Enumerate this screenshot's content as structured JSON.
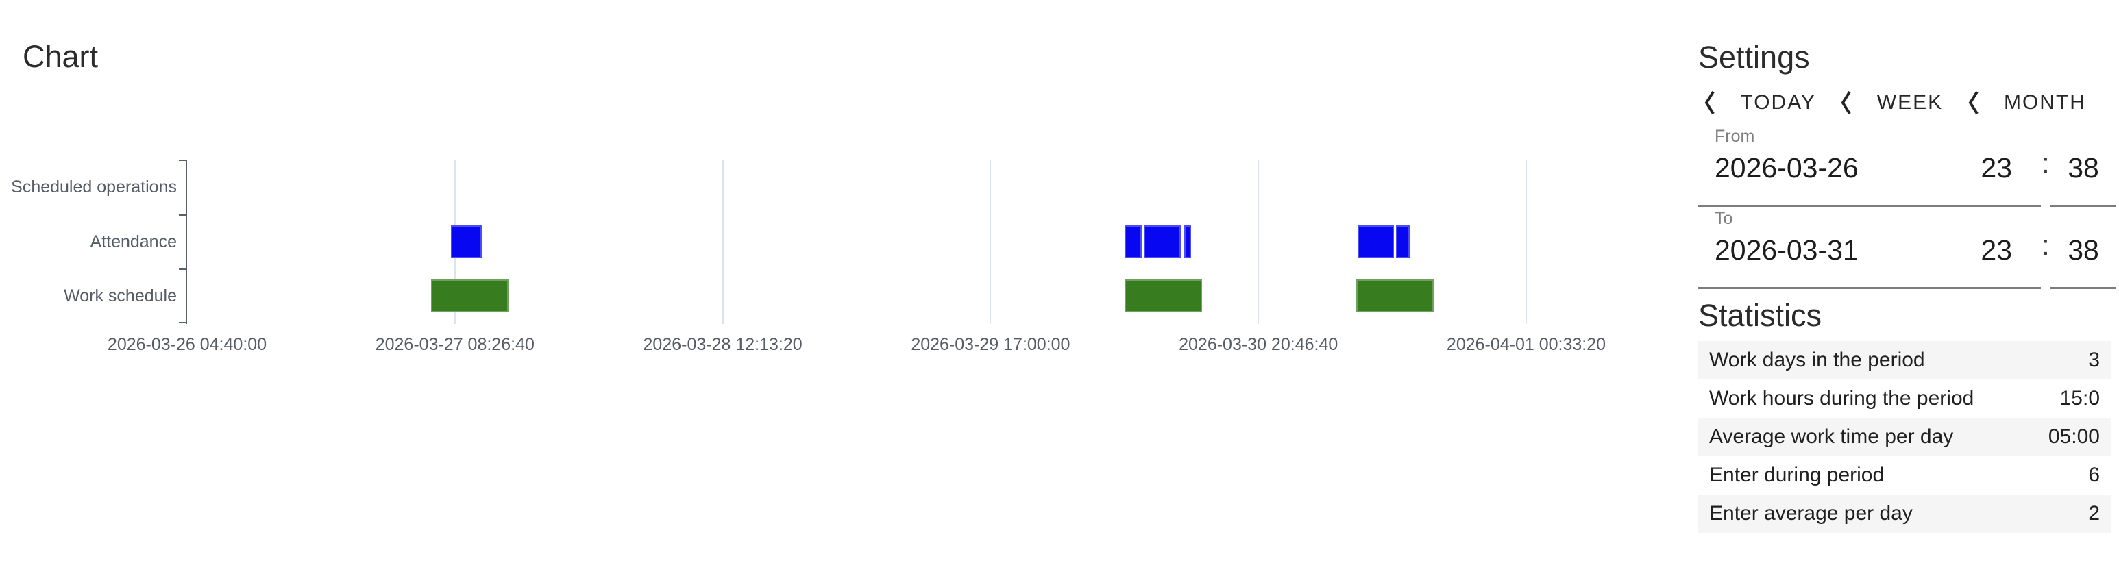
{
  "chart": {
    "title": "Chart"
  },
  "chart_data": {
    "type": "timeline",
    "title": "Chart",
    "rows": [
      "Scheduled operations",
      "Attendance",
      "Work schedule"
    ],
    "x_ticks": [
      "2026-03-26 04:40:00",
      "2026-03-27 08:26:40",
      "2026-03-28 12:13:20",
      "2026-03-29 17:00:00",
      "2026-03-30 20:46:40",
      "2026-04-01 00:33:20"
    ],
    "x_range": [
      "2026-03-26 04:40:00",
      "2026-04-01 00:33:20"
    ],
    "grid": true,
    "colors": {
      "attendance": "#0707f2",
      "work_schedule": "#377d20",
      "gridline": "#dde3ee",
      "axis": "#5a6069"
    },
    "series": [
      {
        "name": "Attendance",
        "color": "#0707f2",
        "intervals": [
          {
            "approx_start": "2026-03-27 08:05",
            "approx_end": "2026-03-27 11:15",
            "frac": [
              0.197,
              0.22
            ]
          },
          {
            "approx_start": "2026-03-30 07:10",
            "approx_end": "2026-03-30 08:52",
            "frac": [
              0.7,
              0.713
            ]
          },
          {
            "approx_start": "2026-03-30 09:00",
            "approx_end": "2026-03-30 12:50",
            "frac": [
              0.7145,
              0.742
            ]
          },
          {
            "approx_start": "2026-03-30 13:10",
            "approx_end": "2026-03-30 14:00",
            "frac": [
              0.7445,
              0.75
            ]
          },
          {
            "approx_start": "2026-03-31 07:17",
            "approx_end": "2026-03-31 11:03",
            "frac": [
              0.874,
              0.901
            ]
          },
          {
            "approx_start": "2026-03-31 11:18",
            "approx_end": "2026-03-31 12:42",
            "frac": [
              0.9027,
              0.913
            ]
          }
        ]
      },
      {
        "name": "Work schedule",
        "color": "#377d20",
        "intervals": [
          {
            "approx_start": "2026-03-27 06:00",
            "approx_end": "2026-03-27 14:00",
            "frac": [
              0.182,
              0.24
            ]
          },
          {
            "approx_start": "2026-03-30 07:00",
            "approx_end": "2026-03-30 15:00",
            "frac": [
              0.7,
              0.758
            ]
          },
          {
            "approx_start": "2026-03-31 07:00",
            "approx_end": "2026-03-31 15:00",
            "frac": [
              0.873,
              0.931
            ]
          }
        ]
      }
    ]
  },
  "settings": {
    "title": "Settings",
    "chevron_icon": "left-chevron",
    "range_buttons": [
      {
        "label": "TODAY"
      },
      {
        "label": "WEEK"
      },
      {
        "label": "MONTH"
      }
    ],
    "from": {
      "label": "From",
      "date": "2026-03-26",
      "hour": "23",
      "separator": ":",
      "minute": "38"
    },
    "to": {
      "label": "To",
      "date": "2026-03-31",
      "hour": "23",
      "separator": ":",
      "minute": "38"
    }
  },
  "statistics": {
    "title": "Statistics",
    "rows": [
      {
        "label": "Work days in the period",
        "value": "3"
      },
      {
        "label": "Work hours during the period",
        "value": "15:0"
      },
      {
        "label": "Average work time per day",
        "value": "05:00"
      },
      {
        "label": "Enter during period",
        "value": "6"
      },
      {
        "label": "Enter average per day",
        "value": "2"
      }
    ]
  }
}
